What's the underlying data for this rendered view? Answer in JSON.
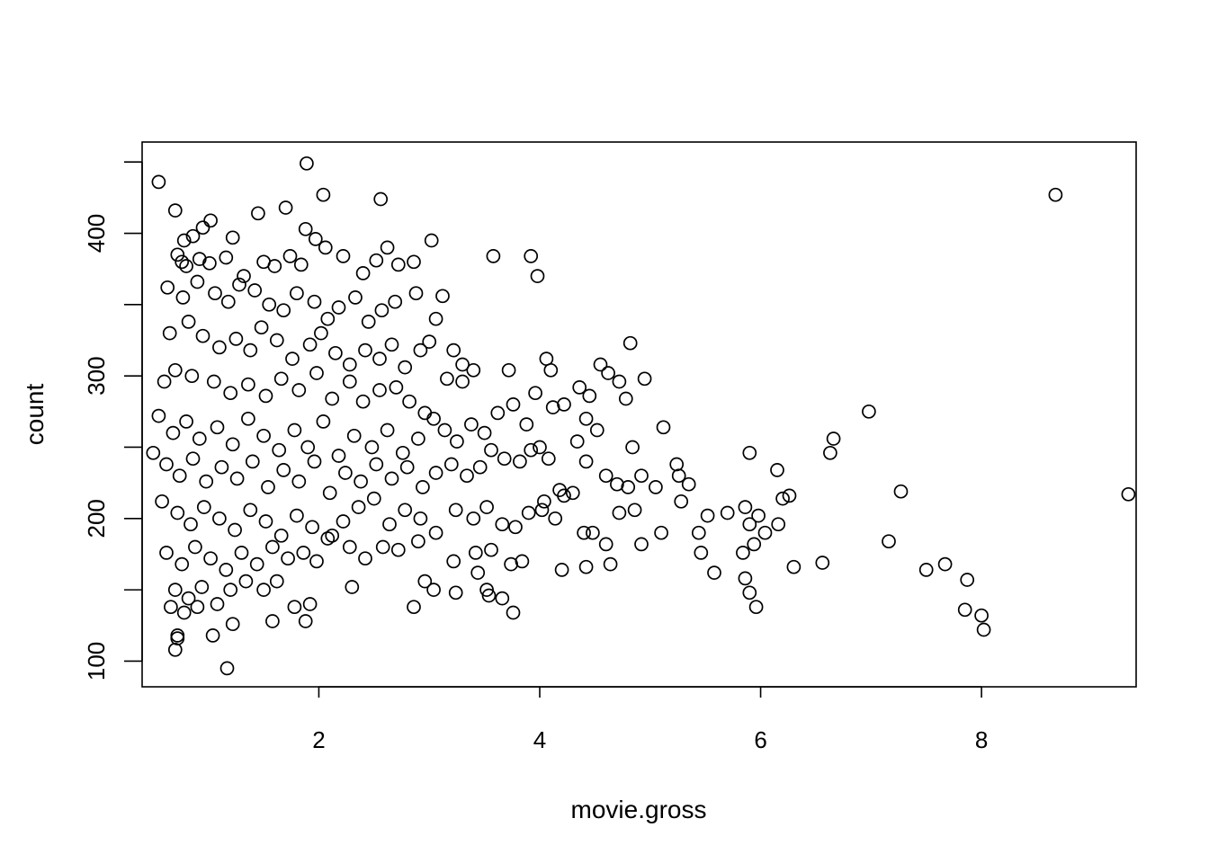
{
  "chart_data": {
    "type": "scatter",
    "xlabel": "movie.gross",
    "ylabel": "count",
    "xlim": [
      0.4,
      9.4
    ],
    "ylim": [
      82,
      464
    ],
    "x_ticks": [
      2,
      4,
      6,
      8
    ],
    "y_ticks": [
      100,
      200,
      300,
      400
    ],
    "grid": false,
    "box": true,
    "marker": "open-circle",
    "color": "#000000",
    "points": [
      [
        0.55,
        436
      ],
      [
        0.7,
        416
      ],
      [
        1.89,
        449
      ],
      [
        2.04,
        427
      ],
      [
        2.56,
        424
      ],
      [
        8.67,
        427
      ],
      [
        9.33,
        217
      ],
      [
        1.02,
        409
      ],
      [
        0.95,
        404
      ],
      [
        0.86,
        398
      ],
      [
        0.78,
        395
      ],
      [
        1.22,
        397
      ],
      [
        1.45,
        414
      ],
      [
        1.7,
        418
      ],
      [
        1.88,
        403
      ],
      [
        1.97,
        396
      ],
      [
        0.72,
        385
      ],
      [
        0.76,
        380
      ],
      [
        0.8,
        377
      ],
      [
        0.92,
        382
      ],
      [
        1.01,
        379
      ],
      [
        1.16,
        383
      ],
      [
        1.32,
        370
      ],
      [
        1.5,
        380
      ],
      [
        1.6,
        377
      ],
      [
        1.74,
        384
      ],
      [
        1.84,
        378
      ],
      [
        2.06,
        390
      ],
      [
        2.22,
        384
      ],
      [
        2.4,
        372
      ],
      [
        2.52,
        381
      ],
      [
        2.62,
        390
      ],
      [
        2.72,
        378
      ],
      [
        2.86,
        380
      ],
      [
        3.02,
        395
      ],
      [
        0.63,
        362
      ],
      [
        0.77,
        355
      ],
      [
        0.9,
        366
      ],
      [
        1.06,
        358
      ],
      [
        1.18,
        352
      ],
      [
        1.28,
        364
      ],
      [
        1.42,
        360
      ],
      [
        1.55,
        350
      ],
      [
        1.68,
        346
      ],
      [
        1.8,
        358
      ],
      [
        1.96,
        352
      ],
      [
        2.08,
        340
      ],
      [
        2.18,
        348
      ],
      [
        2.33,
        355
      ],
      [
        2.45,
        338
      ],
      [
        2.57,
        346
      ],
      [
        2.69,
        352
      ],
      [
        2.88,
        358
      ],
      [
        3.12,
        356
      ],
      [
        3.06,
        340
      ],
      [
        0.65,
        330
      ],
      [
        0.82,
        338
      ],
      [
        0.95,
        328
      ],
      [
        1.1,
        320
      ],
      [
        1.25,
        326
      ],
      [
        1.38,
        318
      ],
      [
        1.48,
        334
      ],
      [
        1.62,
        325
      ],
      [
        1.76,
        312
      ],
      [
        1.92,
        322
      ],
      [
        2.02,
        330
      ],
      [
        2.15,
        316
      ],
      [
        2.28,
        308
      ],
      [
        2.42,
        318
      ],
      [
        2.55,
        312
      ],
      [
        2.66,
        322
      ],
      [
        2.78,
        306
      ],
      [
        2.92,
        318
      ],
      [
        3.0,
        324
      ],
      [
        3.22,
        318
      ],
      [
        3.3,
        308
      ],
      [
        3.4,
        304
      ],
      [
        0.6,
        296
      ],
      [
        0.7,
        304
      ],
      [
        0.85,
        300
      ],
      [
        1.05,
        296
      ],
      [
        1.2,
        288
      ],
      [
        1.36,
        294
      ],
      [
        1.52,
        286
      ],
      [
        1.66,
        298
      ],
      [
        1.82,
        290
      ],
      [
        1.98,
        302
      ],
      [
        2.12,
        284
      ],
      [
        2.28,
        296
      ],
      [
        2.4,
        282
      ],
      [
        2.55,
        290
      ],
      [
        2.7,
        292
      ],
      [
        2.82,
        282
      ],
      [
        2.96,
        274
      ],
      [
        3.16,
        298
      ],
      [
        3.3,
        296
      ],
      [
        3.72,
        304
      ],
      [
        3.96,
        288
      ],
      [
        4.1,
        304
      ],
      [
        4.06,
        312
      ],
      [
        4.36,
        292
      ],
      [
        4.45,
        286
      ],
      [
        4.55,
        308
      ],
      [
        4.62,
        302
      ],
      [
        4.72,
        296
      ],
      [
        4.78,
        284
      ],
      [
        4.95,
        298
      ],
      [
        4.82,
        323
      ],
      [
        3.58,
        384
      ],
      [
        3.92,
        384
      ],
      [
        3.98,
        370
      ],
      [
        0.55,
        272
      ],
      [
        0.68,
        260
      ],
      [
        0.8,
        268
      ],
      [
        0.92,
        256
      ],
      [
        1.08,
        264
      ],
      [
        1.22,
        252
      ],
      [
        1.36,
        270
      ],
      [
        1.5,
        258
      ],
      [
        1.64,
        248
      ],
      [
        1.78,
        262
      ],
      [
        1.9,
        250
      ],
      [
        2.04,
        268
      ],
      [
        2.18,
        244
      ],
      [
        2.32,
        258
      ],
      [
        2.48,
        250
      ],
      [
        2.62,
        262
      ],
      [
        2.76,
        246
      ],
      [
        2.9,
        256
      ],
      [
        3.04,
        270
      ],
      [
        3.14,
        262
      ],
      [
        3.25,
        254
      ],
      [
        3.38,
        266
      ],
      [
        3.5,
        260
      ],
      [
        3.62,
        274
      ],
      [
        3.76,
        280
      ],
      [
        3.88,
        266
      ],
      [
        4.0,
        250
      ],
      [
        4.12,
        278
      ],
      [
        4.22,
        280
      ],
      [
        4.34,
        254
      ],
      [
        4.42,
        270
      ],
      [
        4.52,
        262
      ],
      [
        4.84,
        250
      ],
      [
        5.12,
        264
      ],
      [
        0.5,
        246
      ],
      [
        0.62,
        238
      ],
      [
        0.74,
        230
      ],
      [
        0.86,
        242
      ],
      [
        0.98,
        226
      ],
      [
        1.12,
        236
      ],
      [
        1.26,
        228
      ],
      [
        1.4,
        240
      ],
      [
        1.54,
        222
      ],
      [
        1.68,
        234
      ],
      [
        1.82,
        226
      ],
      [
        1.96,
        240
      ],
      [
        2.1,
        218
      ],
      [
        2.24,
        232
      ],
      [
        2.38,
        226
      ],
      [
        2.52,
        238
      ],
      [
        2.66,
        228
      ],
      [
        2.8,
        236
      ],
      [
        2.94,
        222
      ],
      [
        3.06,
        232
      ],
      [
        3.2,
        238
      ],
      [
        3.34,
        230
      ],
      [
        3.46,
        236
      ],
      [
        3.56,
        248
      ],
      [
        3.68,
        242
      ],
      [
        3.82,
        240
      ],
      [
        3.92,
        248
      ],
      [
        4.08,
        242
      ],
      [
        4.18,
        220
      ],
      [
        4.3,
        218
      ],
      [
        4.42,
        240
      ],
      [
        4.6,
        230
      ],
      [
        4.7,
        224
      ],
      [
        4.8,
        222
      ],
      [
        4.92,
        230
      ],
      [
        5.05,
        222
      ],
      [
        5.24,
        238
      ],
      [
        5.26,
        230
      ],
      [
        5.35,
        224
      ],
      [
        5.9,
        246
      ],
      [
        6.15,
        234
      ],
      [
        6.63,
        246
      ],
      [
        6.66,
        256
      ],
      [
        6.98,
        275
      ],
      [
        0.58,
        212
      ],
      [
        0.72,
        204
      ],
      [
        0.84,
        196
      ],
      [
        0.96,
        208
      ],
      [
        1.1,
        200
      ],
      [
        1.24,
        192
      ],
      [
        1.38,
        206
      ],
      [
        1.52,
        198
      ],
      [
        1.66,
        188
      ],
      [
        1.8,
        202
      ],
      [
        1.94,
        194
      ],
      [
        2.08,
        186
      ],
      [
        2.22,
        198
      ],
      [
        2.36,
        208
      ],
      [
        2.5,
        214
      ],
      [
        2.64,
        196
      ],
      [
        2.78,
        206
      ],
      [
        2.92,
        200
      ],
      [
        3.06,
        190
      ],
      [
        3.24,
        206
      ],
      [
        3.4,
        200
      ],
      [
        3.52,
        208
      ],
      [
        3.66,
        196
      ],
      [
        3.78,
        194
      ],
      [
        3.9,
        204
      ],
      [
        4.02,
        206
      ],
      [
        4.04,
        212
      ],
      [
        4.14,
        200
      ],
      [
        4.22,
        216
      ],
      [
        4.4,
        190
      ],
      [
        4.48,
        190
      ],
      [
        4.6,
        182
      ],
      [
        4.72,
        204
      ],
      [
        4.86,
        206
      ],
      [
        4.92,
        182
      ],
      [
        5.1,
        190
      ],
      [
        5.28,
        212
      ],
      [
        5.44,
        190
      ],
      [
        5.52,
        202
      ],
      [
        5.7,
        204
      ],
      [
        5.86,
        208
      ],
      [
        5.9,
        196
      ],
      [
        5.98,
        202
      ],
      [
        6.04,
        190
      ],
      [
        6.16,
        196
      ],
      [
        6.2,
        214
      ],
      [
        6.26,
        216
      ],
      [
        7.27,
        219
      ],
      [
        7.16,
        184
      ],
      [
        0.62,
        176
      ],
      [
        0.76,
        168
      ],
      [
        0.88,
        180
      ],
      [
        1.02,
        172
      ],
      [
        1.16,
        164
      ],
      [
        1.3,
        176
      ],
      [
        1.44,
        168
      ],
      [
        1.58,
        180
      ],
      [
        1.72,
        172
      ],
      [
        1.86,
        176
      ],
      [
        1.98,
        170
      ],
      [
        2.12,
        188
      ],
      [
        2.28,
        180
      ],
      [
        2.42,
        172
      ],
      [
        2.58,
        180
      ],
      [
        2.72,
        178
      ],
      [
        2.9,
        184
      ],
      [
        3.22,
        170
      ],
      [
        3.42,
        176
      ],
      [
        3.56,
        178
      ],
      [
        3.74,
        168
      ],
      [
        3.84,
        170
      ],
      [
        4.2,
        164
      ],
      [
        4.42,
        166
      ],
      [
        4.64,
        168
      ],
      [
        5.46,
        176
      ],
      [
        5.58,
        162
      ],
      [
        5.84,
        176
      ],
      [
        5.86,
        158
      ],
      [
        5.94,
        182
      ],
      [
        6.3,
        166
      ],
      [
        6.56,
        169
      ],
      [
        7.5,
        164
      ],
      [
        7.67,
        168
      ],
      [
        7.87,
        157
      ],
      [
        0.7,
        150
      ],
      [
        0.82,
        144
      ],
      [
        0.94,
        152
      ],
      [
        1.08,
        140
      ],
      [
        1.2,
        150
      ],
      [
        1.34,
        156
      ],
      [
        1.5,
        150
      ],
      [
        1.62,
        156
      ],
      [
        1.78,
        138
      ],
      [
        1.92,
        140
      ],
      [
        2.3,
        152
      ],
      [
        2.96,
        156
      ],
      [
        3.04,
        150
      ],
      [
        3.24,
        148
      ],
      [
        3.44,
        162
      ],
      [
        3.52,
        150
      ],
      [
        3.54,
        146
      ],
      [
        3.66,
        144
      ],
      [
        5.9,
        148
      ],
      [
        0.66,
        138
      ],
      [
        0.78,
        134
      ],
      [
        0.9,
        138
      ],
      [
        1.22,
        126
      ],
      [
        1.58,
        128
      ],
      [
        1.88,
        128
      ],
      [
        2.86,
        138
      ],
      [
        3.76,
        134
      ],
      [
        5.96,
        138
      ],
      [
        7.85,
        136
      ],
      [
        8.0,
        132
      ],
      [
        0.72,
        118
      ],
      [
        0.72,
        116
      ],
      [
        1.04,
        118
      ],
      [
        0.7,
        108
      ],
      [
        8.02,
        122
      ],
      [
        1.17,
        95
      ]
    ]
  }
}
